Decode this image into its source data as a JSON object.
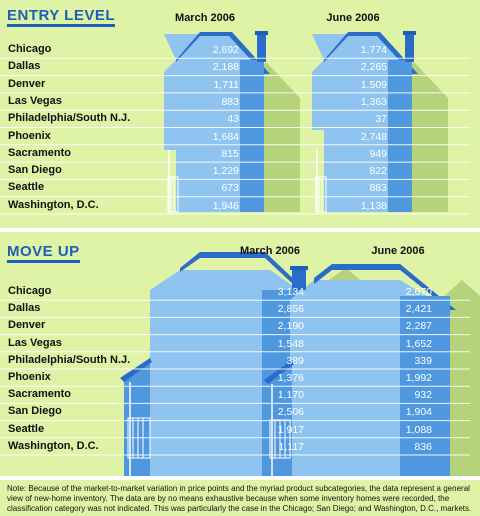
{
  "chart_data": [
    {
      "type": "table",
      "title": "ENTRY LEVEL",
      "columns": [
        "March 2006",
        "June 2006"
      ],
      "categories": [
        "Chicago",
        "Dallas",
        "Denver",
        "Las Vegas",
        "Philadelphia/South N.J.",
        "Phoenix",
        "Sacramento",
        "San Diego",
        "Seattle",
        "Washington, D.C."
      ],
      "series": [
        {
          "name": "March 2006",
          "values": [
            "2,692",
            "2,188",
            "1,711",
            "883",
            "43",
            "1,684",
            "815",
            "1,229",
            "673",
            "1,946"
          ]
        },
        {
          "name": "June 2006",
          "values": [
            "1,774",
            "2,265",
            "1,509",
            "1,363",
            "37",
            "2,748",
            "949",
            "822",
            "883",
            "1,138"
          ]
        }
      ]
    },
    {
      "type": "table",
      "title": "MOVE UP",
      "columns": [
        "March 2006",
        "June 2006"
      ],
      "categories": [
        "Chicago",
        "Dallas",
        "Denver",
        "Las Vegas",
        "Philadelphia/South N.J.",
        "Phoenix",
        "Sacramento",
        "San Diego",
        "Seattle",
        "Washington, D.C."
      ],
      "series": [
        {
          "name": "March 2006",
          "values": [
            "3,134",
            "2,856",
            "2,190",
            "1,548",
            "389",
            "1,376",
            "1,170",
            "2,506",
            "1,917",
            "1,117"
          ]
        },
        {
          "name": "June 2006",
          "values": [
            "2,670",
            "2,421",
            "2,287",
            "1,652",
            "339",
            "1,992",
            "932",
            "1,904",
            "1,088",
            "836"
          ]
        }
      ]
    }
  ],
  "note": "Note: Because of the market-to-market variation in price points and the myriad product subcategories, the data represent a general view of new-home inventory. The data are by no means exhaustive because when some inventory homes were recorded, the classification category was not indicated. This was particularly the case in the Chicago; San Diego; and Washington, D.C., markets.",
  "colors": {
    "background": "#dff3a6",
    "house_light": "#8ec4ef",
    "house_mid": "#4f98e0",
    "house_dark": "#2a6cc8",
    "house_shadow": "#b5d37a",
    "title": "#1d5fb8"
  }
}
